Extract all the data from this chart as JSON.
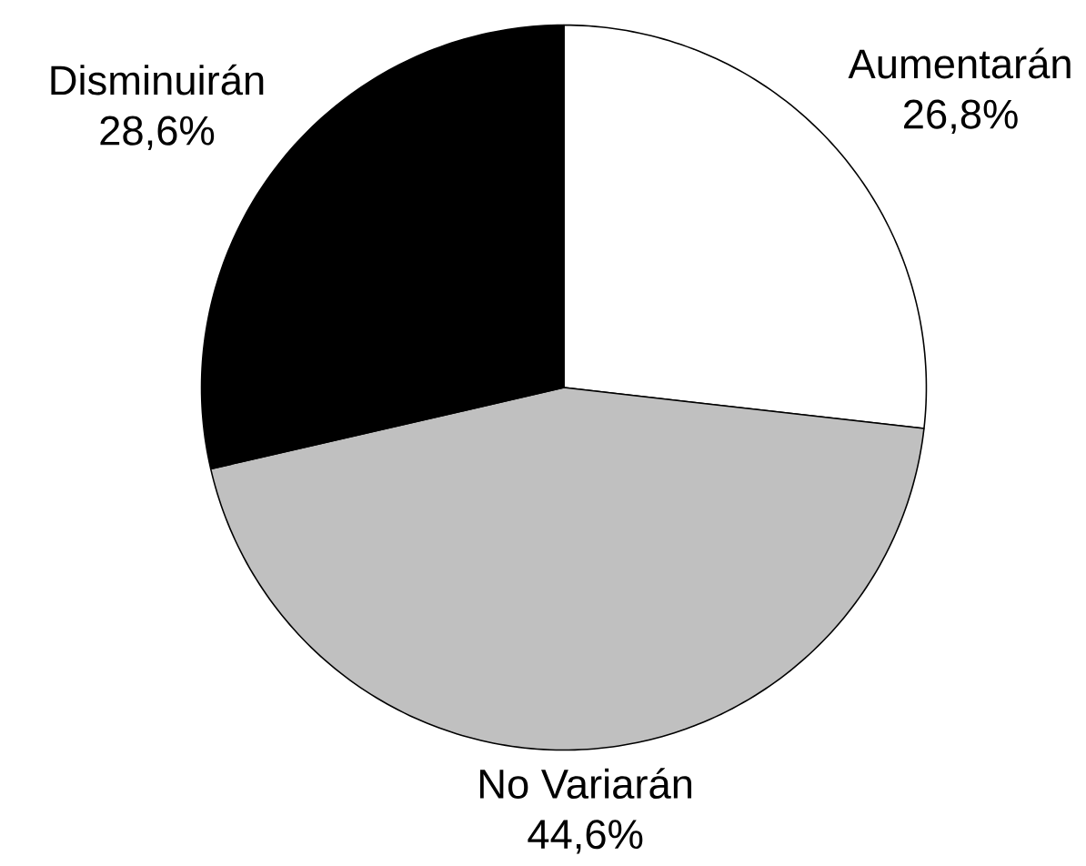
{
  "chart_data": {
    "type": "pie",
    "categories": [
      "Aumentarán",
      "No Variarán",
      "Disminuirán"
    ],
    "values": [
      26.8,
      44.6,
      28.6
    ],
    "colors": [
      "#ffffff",
      "#c0c0c0",
      "#000000"
    ],
    "value_labels": [
      "26,8%",
      "44,6%",
      "28,6%"
    ]
  }
}
